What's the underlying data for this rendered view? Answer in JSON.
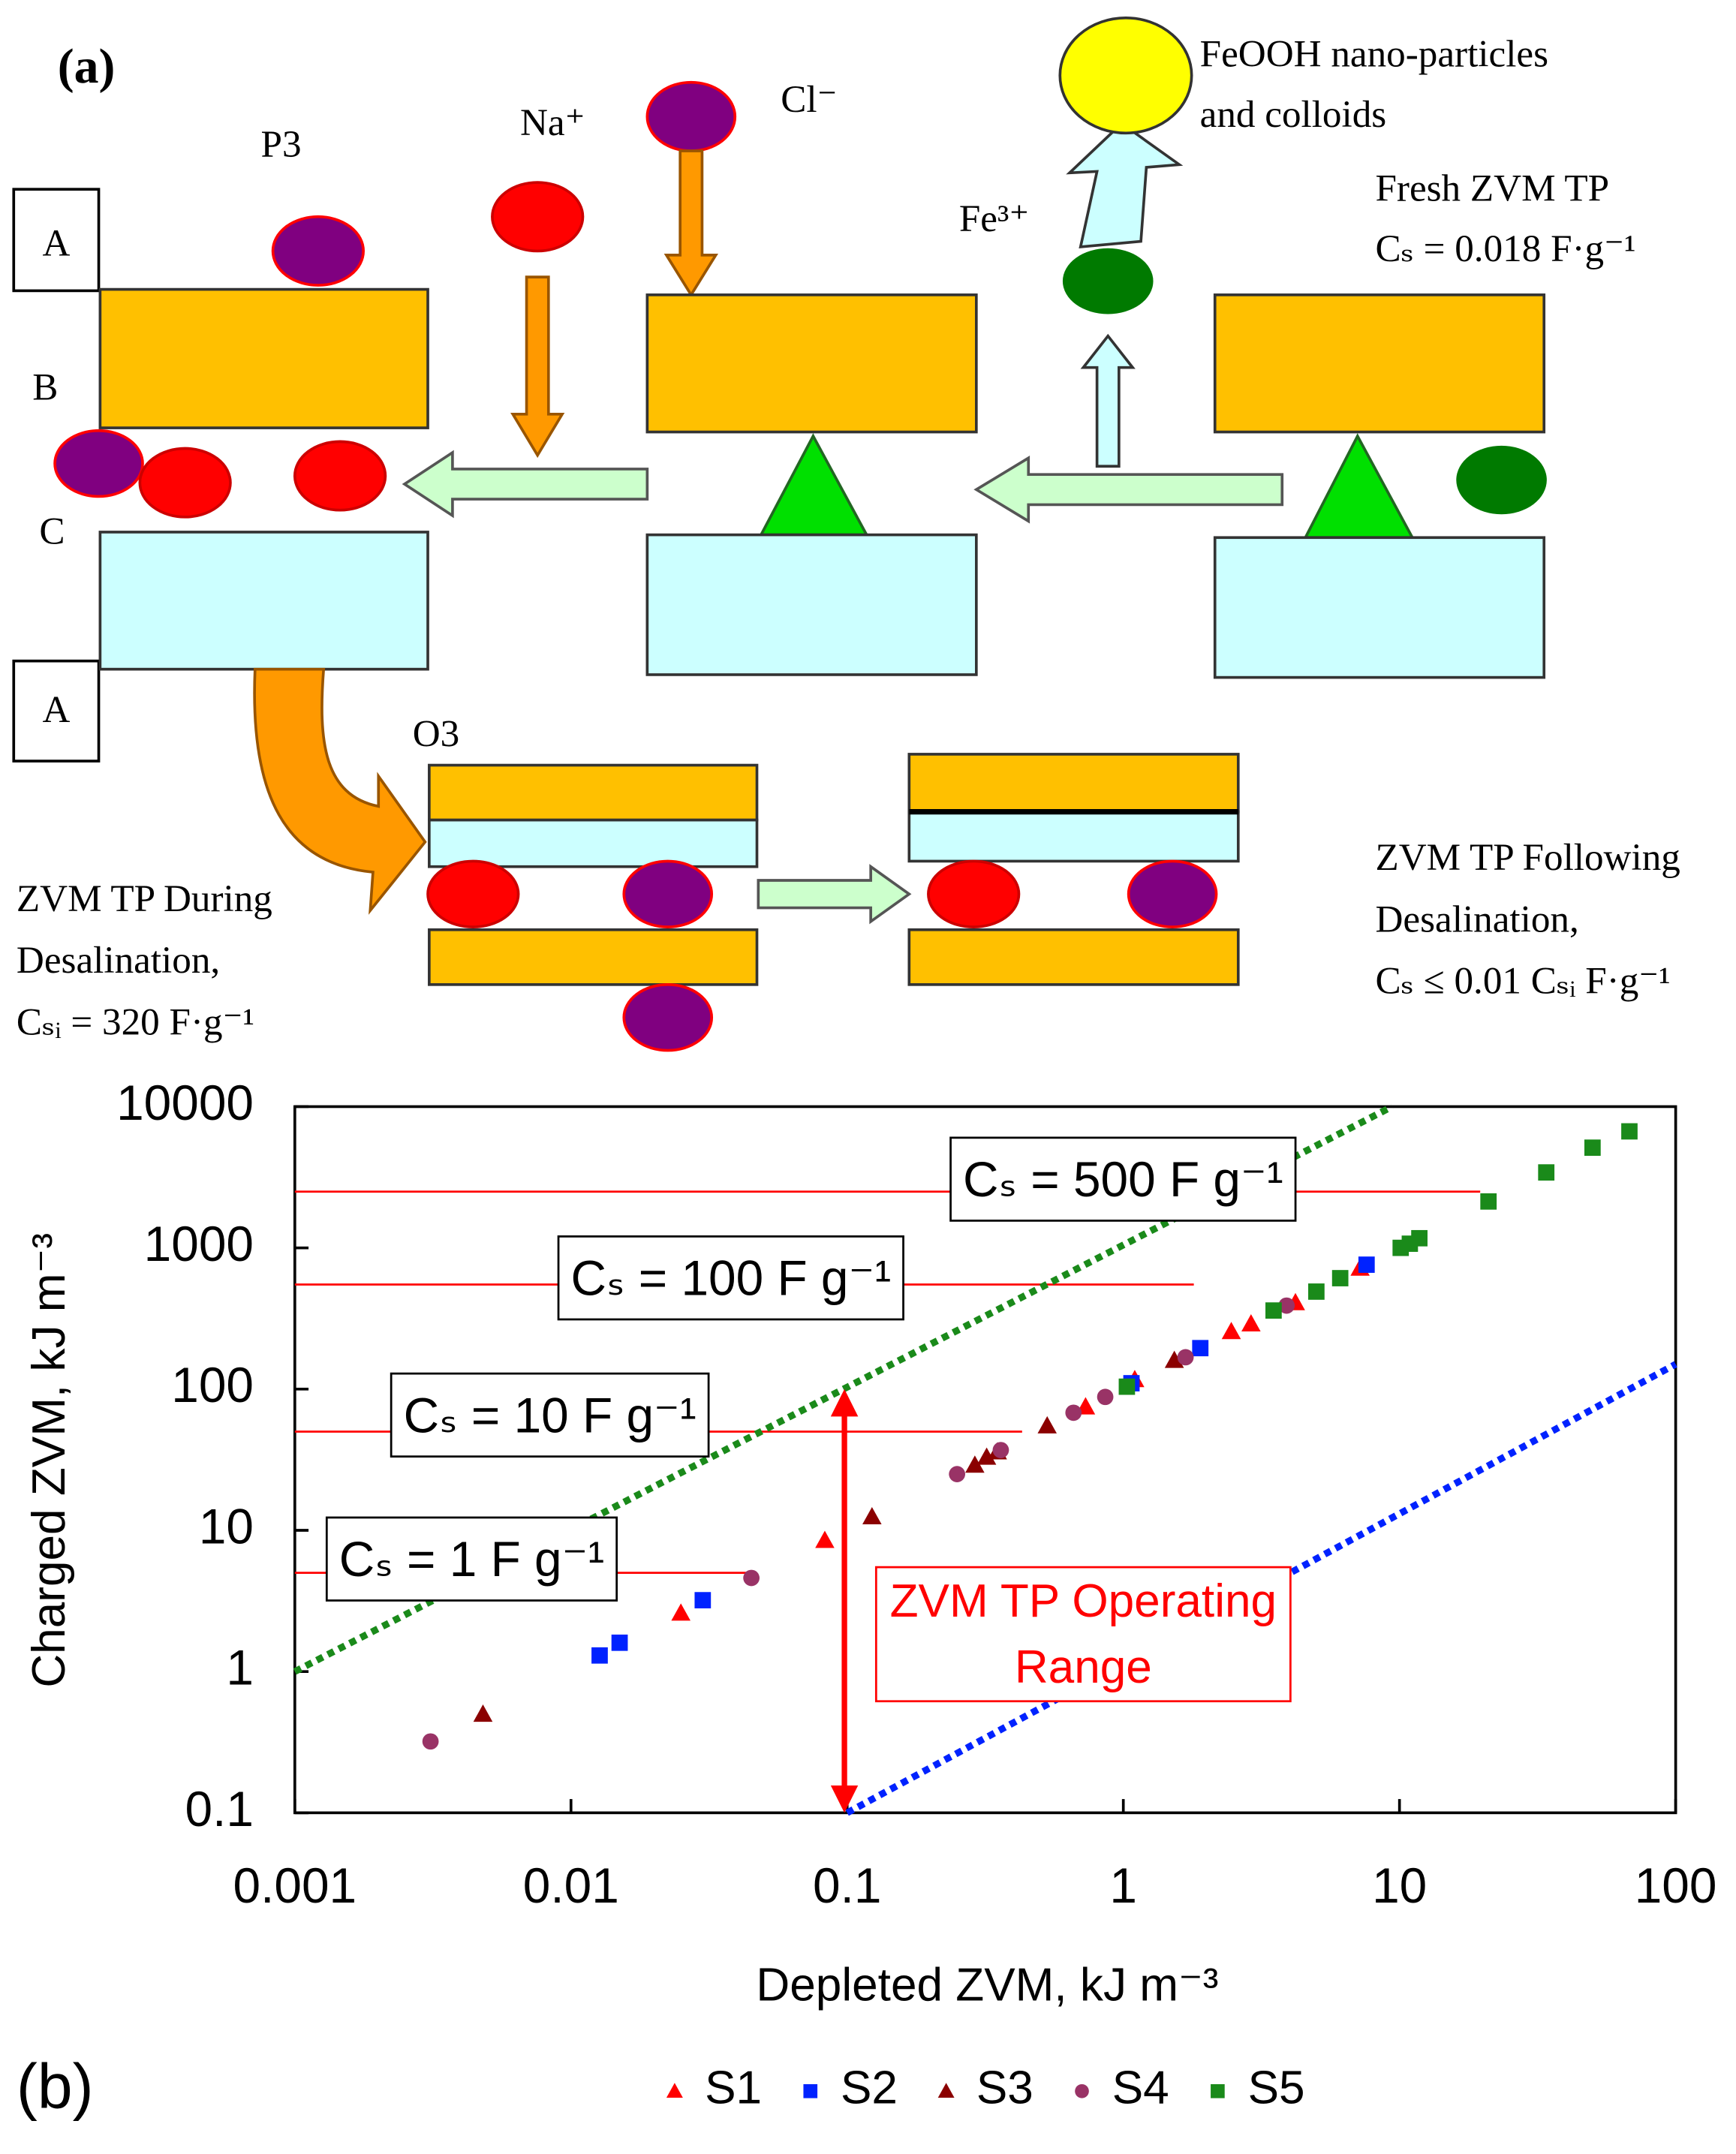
{
  "panel_a": {
    "label": "(a)",
    "p3": "P3",
    "na": "Na⁺",
    "cl": "Cl⁻",
    "feooh": [
      "FeOOH    nano-particles",
      "and colloids"
    ],
    "fe": "Fe³⁺",
    "fresh": [
      "Fresh ZVM TP",
      "Cₛ = 0.018 F·g⁻¹"
    ],
    "box_labels": [
      "A",
      "B",
      "C",
      "A"
    ],
    "o3": "O3",
    "during": [
      "ZVM TP During",
      "Desalination,",
      "Cₛᵢ = 320 F·g⁻¹"
    ],
    "following": [
      "ZVM TP Following",
      "Desalination,",
      "Cₛ ≤ 0.01 Cₛᵢ F·g⁻¹"
    ]
  },
  "chart_data": {
    "type": "scatter",
    "panel_label": "(b)",
    "x_label": "Depleted ZVM, kJ m⁻³",
    "y_label": "Charged ZVM, kJ m⁻³",
    "log_x": true,
    "log_y": true,
    "xlim": [
      0.001,
      100
    ],
    "ylim": [
      0.1,
      10000
    ],
    "xticks": [
      0.001,
      0.01,
      0.1,
      1,
      10,
      100
    ],
    "yticks": [
      0.1,
      1,
      10,
      100,
      1000,
      10000
    ],
    "legend": "bottom",
    "series": [
      {
        "name": "S1",
        "color": "#ff0000",
        "marker": "triangle",
        "x": [
          0.025,
          0.083,
          0.73,
          1.1,
          2.46,
          2.9,
          4.2,
          7.2
        ],
        "values": [
          2.6,
          8.5,
          75,
          117,
          256,
          290,
          410,
          720
        ]
      },
      {
        "name": "S2",
        "color": "#0022ff",
        "marker": "square",
        "x": [
          0.0127,
          0.015,
          0.03,
          1.07,
          1.9,
          7.6
        ],
        "values": [
          1.3,
          1.6,
          3.2,
          110,
          195,
          760
        ]
      },
      {
        "name": "S3",
        "color": "#8b0000",
        "marker": "triangle",
        "x": [
          0.0048,
          0.123,
          0.29,
          0.32,
          0.35,
          0.53,
          1.53
        ],
        "values": [
          0.5,
          12.5,
          29,
          33,
          36,
          55,
          160
        ]
      },
      {
        "name": "S4",
        "color": "#993366",
        "marker": "circle",
        "x": [
          0.0031,
          0.045,
          0.25,
          0.36,
          0.66,
          0.86,
          1.68,
          3.9
        ],
        "values": [
          0.32,
          4.6,
          25,
          37,
          68,
          88,
          168,
          390
        ]
      },
      {
        "name": "S5",
        "color": "#1a8a1a",
        "marker": "square",
        "x": [
          1.03,
          3.5,
          5.0,
          6.1,
          10.1,
          10.9,
          11.8,
          21,
          34,
          50,
          68
        ],
        "values": [
          104,
          360,
          490,
          610,
          1000,
          1070,
          1170,
          2130,
          3420,
          5120,
          6680
        ]
      }
    ],
    "reference_lines": [
      {
        "color": "#1a8a1a",
        "x": [
          0.001,
          9.4
        ],
        "y": [
          1,
          10000
        ]
      },
      {
        "color": "#0022ff",
        "x": [
          0.1,
          100
        ],
        "y": [
          0.1,
          150
        ]
      }
    ],
    "capacitance_lines": [
      {
        "label": "Cₛ = 1 F g⁻¹",
        "x": [
          0.001,
          0.045
        ],
        "y": 5
      },
      {
        "label": "Cₛ = 10 F g⁻¹",
        "x": [
          0.001,
          0.43
        ],
        "y": 50
      },
      {
        "label": "Cₛ = 100 F g⁻¹",
        "x": [
          0.001,
          1.8
        ],
        "y": 550
      },
      {
        "label": "Cₛ = 500 F g⁻¹",
        "x": [
          0.001,
          19.6
        ],
        "y": 2500
      }
    ],
    "line_color": "#ff0000",
    "operating_range": {
      "lines": [
        "ZVM TP Operating",
        "Range"
      ],
      "x": 0.1,
      "y": [
        0.1,
        100
      ],
      "color": "#ff0000"
    }
  }
}
